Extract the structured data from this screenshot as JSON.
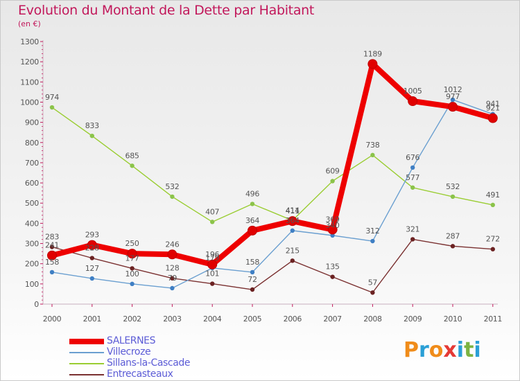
{
  "title": "Evolution du Montant de la Dette par Habitant",
  "subtitle": "(en €)",
  "logo": {
    "text": "Proxiti",
    "letters": [
      {
        "ch": "P",
        "color": "#f08c1a"
      },
      {
        "ch": "r",
        "color": "#2a9fd6"
      },
      {
        "ch": "o",
        "color": "#f08c1a"
      },
      {
        "ch": "x",
        "color": "#e53935"
      },
      {
        "ch": "i",
        "color": "#2a9fd6"
      },
      {
        "ch": "t",
        "color": "#7cb342"
      },
      {
        "ch": "i",
        "color": "#2a9fd6"
      }
    ]
  },
  "chart_data": {
    "type": "line",
    "title": "Evolution du Montant de la Dette par Habitant",
    "ylabel": "(en €)",
    "xlabel": "",
    "x": [
      "2000",
      "2001",
      "2002",
      "2003",
      "2004",
      "2005",
      "2006",
      "2007",
      "2008",
      "2009",
      "2010",
      "2011"
    ],
    "ylim": [
      0,
      1300
    ],
    "yticks": [
      "0",
      "100",
      "200",
      "300",
      "400",
      "500",
      "600",
      "700",
      "800",
      "900",
      "1000",
      "1100",
      "1200",
      "1300"
    ],
    "grid": false,
    "legend": "bottom-left",
    "series": [
      {
        "name": "SALERNES",
        "color": "#ee0000",
        "marker": "#e00000",
        "values": [
          241,
          293,
          250,
          246,
          196,
          364,
          411,
          369,
          1189,
          1005,
          977,
          921
        ],
        "labels": [
          "241",
          "293",
          "250",
          "246",
          "196",
          "364",
          "411",
          "369",
          "1189",
          "1005",
          "977",
          "921"
        ]
      },
      {
        "name": "Villecroze",
        "color": "#6a9fd0",
        "marker": "#3f7fc4",
        "values": [
          158,
          127,
          100,
          79,
          179,
          158,
          364,
          340,
          312,
          676,
          1012,
          941
        ],
        "labels": [
          "158",
          "127",
          "100",
          "79",
          "179",
          "158",
          "364",
          "340",
          "312",
          "676",
          "1012",
          "941"
        ]
      },
      {
        "name": "Sillans-la-Cascade",
        "color": "#9acd32",
        "marker": "#8bc34a",
        "values": [
          974,
          833,
          685,
          532,
          407,
          496,
          414,
          609,
          738,
          577,
          532,
          491
        ],
        "labels": [
          "974",
          "833",
          "685",
          "532",
          "407",
          "496",
          "414",
          "609",
          "738",
          "577",
          "532",
          "491"
        ]
      },
      {
        "name": "Entrecasteaux",
        "color": "#7a3030",
        "marker": "#6b2222",
        "values": [
          283,
          228,
          177,
          128,
          101,
          72,
          215,
          135,
          57,
          321,
          287,
          272
        ],
        "labels": [
          "283",
          "228",
          "177",
          "128",
          "101",
          "72",
          "215",
          "135",
          "57",
          "321",
          "287",
          "272"
        ]
      }
    ]
  }
}
